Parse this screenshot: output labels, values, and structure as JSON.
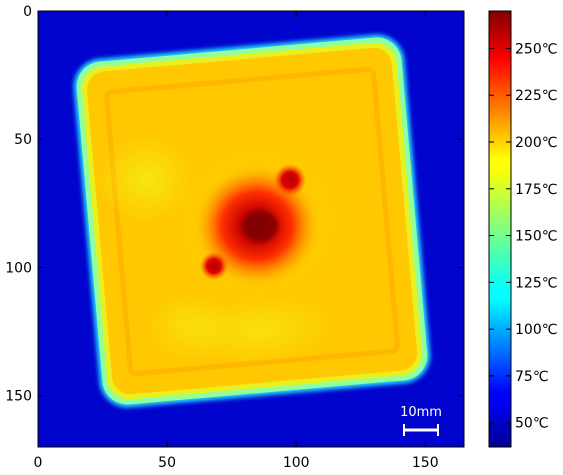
{
  "chart_data": {
    "type": "heatmap",
    "title": "",
    "xlabel": "",
    "ylabel": "",
    "xlim": [
      0,
      165
    ],
    "ylim": [
      170,
      0
    ],
    "x_ticks": [
      0,
      50,
      100,
      150
    ],
    "y_ticks": [
      0,
      50,
      100,
      150
    ],
    "x_tick_labels": [
      "0",
      "50",
      "100",
      "150"
    ],
    "y_tick_labels": [
      "0",
      "50",
      "100",
      "150"
    ],
    "colormap": "jet",
    "colorbar": {
      "range": [
        37,
        270
      ],
      "ticks": [
        50,
        75,
        100,
        125,
        150,
        175,
        200,
        225,
        250
      ],
      "tick_labels": [
        "50℃",
        "75℃",
        "100℃",
        "125℃",
        "150℃",
        "175℃",
        "200℃",
        "225℃",
        "250℃"
      ]
    },
    "background_temperature": 45,
    "plate": {
      "edge_temperature": 150,
      "inner_temperature": 195,
      "center": [
        86,
        86
      ],
      "rotation_deg": -5
    },
    "hotspots": [
      {
        "x": 86,
        "y": 83,
        "temperature": 265
      },
      {
        "x": 97,
        "y": 66,
        "temperature": 240
      },
      {
        "x": 69,
        "y": 100,
        "temperature": 235
      }
    ],
    "scale_bar": {
      "label": "10mm"
    }
  },
  "colors": {
    "background": "#0000cc",
    "plate_edge": "#a0ffa0",
    "plate_body": "#ffcc00",
    "hotspot": "#990000"
  }
}
